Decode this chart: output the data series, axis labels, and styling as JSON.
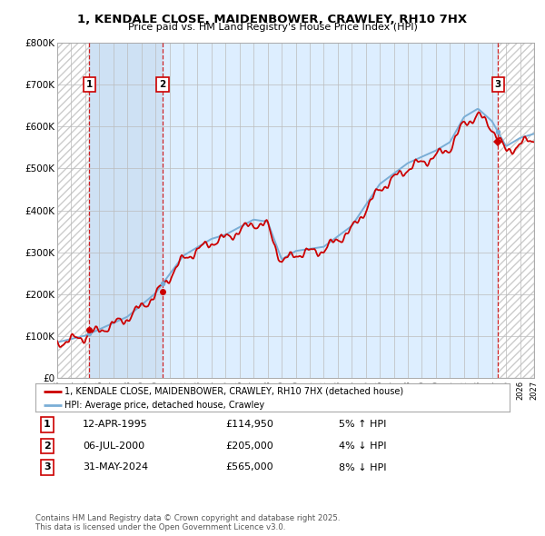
{
  "title_line1": "1, KENDALE CLOSE, MAIDENBOWER, CRAWLEY, RH10 7HX",
  "title_line2": "Price paid vs. HM Land Registry's House Price Index (HPI)",
  "sale_prices": [
    114950,
    205000,
    565000
  ],
  "sale_labels": [
    "1",
    "2",
    "3"
  ],
  "sale_pct": [
    "5% ↑ HPI",
    "4% ↓ HPI",
    "8% ↓ HPI"
  ],
  "sale_date_strs": [
    "12-APR-1995",
    "06-JUL-2000",
    "31-MAY-2024"
  ],
  "sale_price_strs": [
    "£114,950",
    "£205,000",
    "£565,000"
  ],
  "sale_years": [
    1995.28,
    2000.51,
    2024.42
  ],
  "hpi_color": "#7aaed6",
  "price_color": "#cc0000",
  "plot_bg": "#ddeeff",
  "active_bg": "#ddeeff",
  "hatch_bg": "#ffffff",
  "grid_color": "#bbbbbb",
  "ylim": [
    0,
    800000
  ],
  "ytick_step": 100000,
  "xlim_start": 1993.0,
  "xlim_end": 2027.0,
  "hatch_left_end": 1995.28,
  "between_fill_end": 2000.51,
  "hatch_right_start": 2024.42,
  "footer_text": "Contains HM Land Registry data © Crown copyright and database right 2025.\nThis data is licensed under the Open Government Licence v3.0.",
  "legend_label_red": "1, KENDALE CLOSE, MAIDENBOWER, CRAWLEY, RH10 7HX (detached house)",
  "legend_label_blue": "HPI: Average price, detached house, Crawley",
  "fig_bg": "#ffffff"
}
